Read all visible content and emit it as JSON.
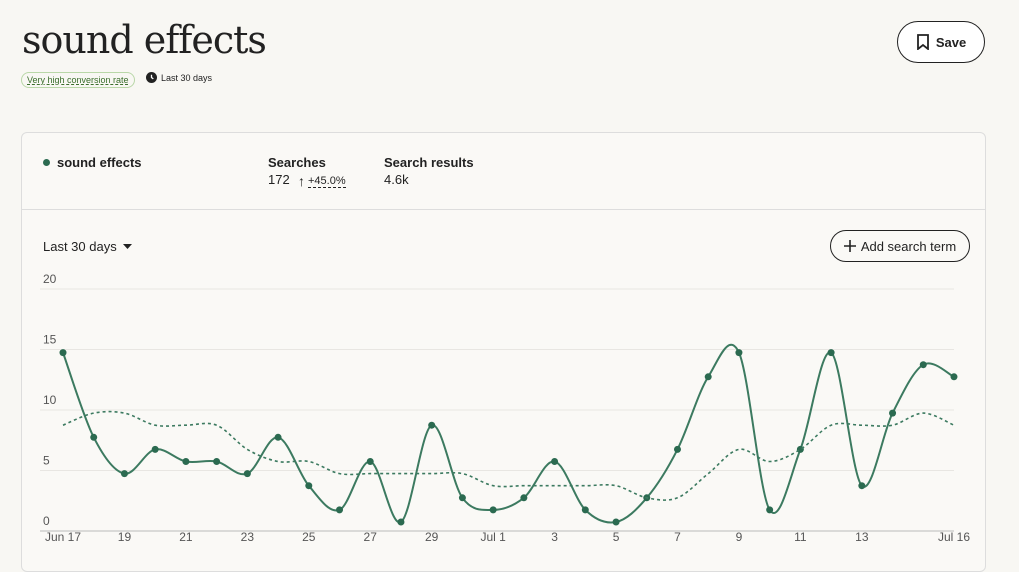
{
  "header": {
    "title": "sound effects",
    "badge": "Very high conversion rate",
    "period": "Last 30 days",
    "save": "Save"
  },
  "stats": {
    "searches_label": "Searches",
    "searches_value": "172",
    "change": "+45.0%",
    "results_label": "Search results",
    "results_value": "4.6k"
  },
  "controls": {
    "range": "Last 30 days",
    "add": "Add search term"
  },
  "chart_data": {
    "type": "line",
    "categories": [
      "Jun 17",
      null,
      "19",
      null,
      "21",
      null,
      "23",
      null,
      "25",
      null,
      "27",
      null,
      "29",
      null,
      "Jul 1",
      null,
      "3",
      null,
      "5",
      null,
      "7",
      null,
      "9",
      null,
      "11",
      null,
      "13",
      null,
      null,
      "Jul 16"
    ],
    "series": [
      {
        "name": "sound effects",
        "color": "#3c7a60",
        "values": [
          14,
          7,
          4,
          6,
          5,
          5,
          4,
          7,
          3,
          1,
          5,
          0,
          8,
          2,
          1,
          2,
          5,
          1,
          0,
          2,
          6,
          12,
          14,
          1,
          6,
          14,
          3,
          9,
          13,
          12
        ]
      },
      {
        "color": "#3c7a60",
        "dashed": true,
        "values": [
          8,
          9,
          9,
          8,
          8,
          8,
          6,
          5,
          5,
          4,
          4,
          4,
          4,
          4,
          3,
          3,
          3,
          3,
          3,
          2,
          2,
          4,
          6,
          5,
          6,
          8,
          8,
          8,
          9,
          8
        ]
      }
    ],
    "ylim": [
      0,
      20
    ],
    "yticks": [
      0,
      5,
      10,
      15,
      20
    ],
    "grid": true
  }
}
